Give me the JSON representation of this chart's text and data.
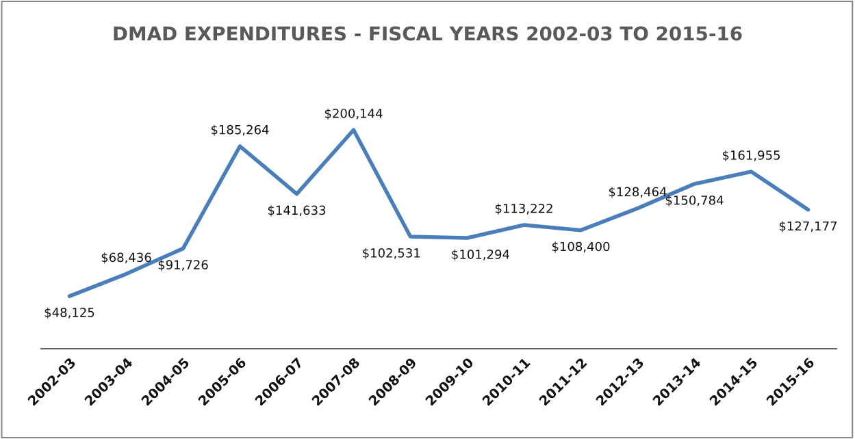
{
  "chart_data": {
    "type": "line",
    "title": "DMAD EXPENDITURES - FISCAL YEARS 2002-03 TO 2015-16",
    "categories": [
      "2002-03",
      "2003-04",
      "2004-05",
      "2005-06",
      "2006-07",
      "2007-08",
      "2008-09",
      "2009-10",
      "2010-11",
      "2011-12",
      "2012-13",
      "2013-14",
      "2014-15",
      "2015-16"
    ],
    "series": [
      {
        "color": "#4a7ebb",
        "values": [
          48125,
          68436,
          91726,
          185264,
          141633,
          200144,
          102531,
          101294,
          113222,
          108400,
          128464,
          150784,
          161955,
          127177
        ],
        "value_labels": [
          "$48,125",
          "$68,436",
          "$91,726",
          "$185,264",
          "$141,633",
          "$200,144",
          "$102,531",
          "$101,294",
          "$113,222",
          "$108,400",
          "$128,464",
          "$150,784",
          "$161,955",
          "$127,177"
        ]
      }
    ],
    "tick_labels": "x",
    "grid": false,
    "legend": false,
    "marker": "none",
    "line_style": "solid"
  }
}
